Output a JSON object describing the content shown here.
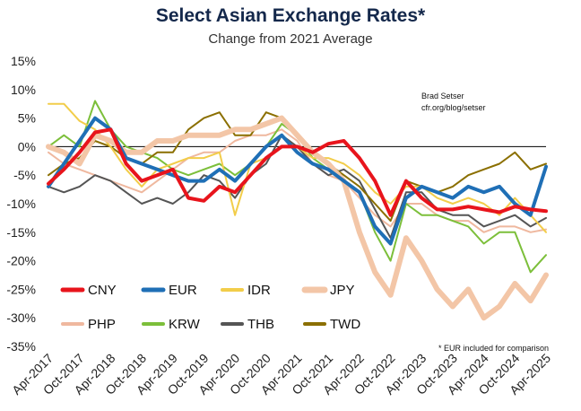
{
  "chart_data": {
    "type": "line",
    "title": "Select Asian Exchange Rates*",
    "subtitle": "Change from 2021 Average",
    "xlabel": "",
    "ylabel": "",
    "ylim": [
      -35,
      15
    ],
    "yticks": [
      "15%",
      "10%",
      "5%",
      "0%",
      "-5%",
      "-10%",
      "-15%",
      "-20%",
      "-25%",
      "-30%",
      "-35%"
    ],
    "xtick_labels": [
      "Apr-2017",
      "Oct-2017",
      "Apr-2018",
      "Oct-2018",
      "Apr-2019",
      "Oct-2019",
      "Apr-2020",
      "Oct-2020",
      "Apr-2021",
      "Oct-2021",
      "Apr-2022",
      "Oct-2022",
      "Apr-2023",
      "Oct-2023",
      "Apr-2024",
      "Oct-2024",
      "Apr-2025"
    ],
    "x": [
      "Apr-2017",
      "Jul-2017",
      "Oct-2017",
      "Jan-2018",
      "Apr-2018",
      "Jul-2018",
      "Oct-2018",
      "Jan-2019",
      "Apr-2019",
      "Jul-2019",
      "Oct-2019",
      "Jan-2020",
      "Apr-2020",
      "Jul-2020",
      "Oct-2020",
      "Jan-2021",
      "Apr-2021",
      "Jul-2021",
      "Oct-2021",
      "Jan-2022",
      "Apr-2022",
      "Jul-2022",
      "Oct-2022",
      "Jan-2023",
      "Apr-2023",
      "Jul-2023",
      "Oct-2023",
      "Jan-2024",
      "Apr-2024",
      "Jul-2024",
      "Oct-2024",
      "Jan-2025",
      "Apr-2025"
    ],
    "legend_position": "bottom-left",
    "series": [
      {
        "name": "CNY",
        "color": "#e8141c",
        "width": 4,
        "values": [
          -6.5,
          -4,
          -1,
          2.5,
          3,
          -3,
          -6,
          -5,
          -4,
          -9,
          -9.5,
          -7,
          -8,
          -5,
          -2,
          0,
          0,
          -1,
          0.5,
          1,
          -2,
          -6,
          -12,
          -6,
          -9,
          -11,
          -11,
          -10.5,
          -11,
          -11.5,
          -10.5,
          -11,
          -11.3
        ]
      },
      {
        "name": "EUR",
        "color": "#1f6fb6",
        "width": 4,
        "values": [
          -7,
          -3,
          1,
          5,
          3,
          -2,
          -3,
          -4,
          -5,
          -6,
          -6,
          -4,
          -6,
          -3,
          0,
          2,
          -1,
          -3,
          -4,
          -6,
          -8,
          -14,
          -17,
          -9,
          -7,
          -8,
          -9,
          -7,
          -8,
          -7,
          -10,
          -12,
          -3.5
        ]
      },
      {
        "name": "IDR",
        "color": "#f2cd4a",
        "width": 2,
        "values": [
          7.5,
          7.5,
          4.5,
          3,
          0,
          -4,
          -7,
          -4,
          -3,
          -2,
          -2,
          -1,
          -12,
          -3,
          -2,
          0,
          0,
          -2,
          -2,
          -3,
          -5,
          -8,
          -10,
          -7,
          -7,
          -9,
          -10,
          -9,
          -10,
          -12,
          -9,
          -12,
          -15
        ]
      },
      {
        "name": "JPY",
        "color": "#f3c6a7",
        "width": 6,
        "values": [
          0,
          -1,
          -3,
          2,
          1,
          -1,
          -1,
          1,
          1,
          2,
          2,
          2,
          3,
          3,
          4,
          5,
          2,
          -1,
          -3,
          -6,
          -15,
          -22,
          -26,
          -16,
          -20,
          -25,
          -28,
          -25,
          -30,
          -28,
          -24,
          -27,
          -22.5
        ]
      },
      {
        "name": "PHP",
        "color": "#efb89f",
        "width": 2,
        "values": [
          -1,
          -3,
          -4,
          -5,
          -6,
          -7,
          -8,
          -6,
          -4,
          -2,
          -1,
          -1,
          1,
          2,
          2,
          3,
          1,
          -3,
          -5,
          -6,
          -9,
          -12,
          -14,
          -10,
          -10,
          -12,
          -13,
          -13,
          -15,
          -14,
          -14,
          -15,
          -14.5
        ]
      },
      {
        "name": "KRW",
        "color": "#7cbf3a",
        "width": 2,
        "values": [
          0,
          2,
          0,
          8,
          3,
          0,
          -1,
          -2,
          -4,
          -5,
          -4,
          -3,
          -5,
          -3,
          0,
          4,
          2,
          -2,
          -4,
          -6,
          -8,
          -15,
          -20,
          -10,
          -12,
          -12,
          -13,
          -14,
          -17,
          -15,
          -15,
          -22,
          -19
        ]
      },
      {
        "name": "THB",
        "color": "#555555",
        "width": 2,
        "values": [
          -7,
          -8,
          -7,
          -5,
          -6,
          -8,
          -10,
          -9,
          -10,
          -8,
          -5,
          -6,
          -9,
          -5,
          -3,
          2,
          0,
          -3,
          -5,
          -4,
          -6,
          -11,
          -16,
          -8,
          -8,
          -11,
          -12,
          -12,
          -14,
          -13,
          -12,
          -14,
          -12.5
        ]
      },
      {
        "name": "TWD",
        "color": "#8b6f00",
        "width": 2,
        "values": [
          -5,
          -3,
          -2,
          1,
          0,
          -2,
          -3,
          -1,
          -1,
          3,
          5,
          6,
          2,
          2,
          6,
          5,
          2,
          -1,
          -3,
          -5,
          -7,
          -10,
          -13,
          -6,
          -7,
          -8,
          -7,
          -5,
          -4,
          -3,
          -1,
          -4,
          -3
        ]
      }
    ],
    "annotations": [
      "Brad Setser",
      "cfr.org/blog/setser",
      "* EUR included for comparison"
    ]
  }
}
